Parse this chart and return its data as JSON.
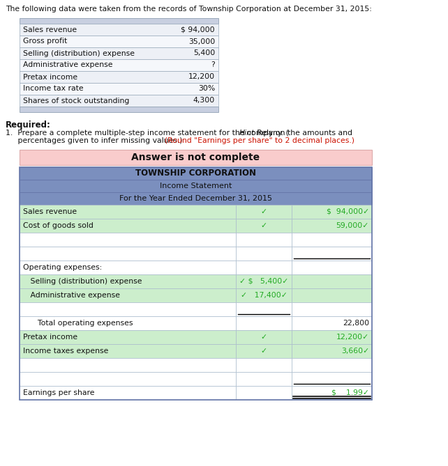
{
  "intro_text": "The following data were taken from the records of Township Corporation at December 31, 2015:",
  "given_table_rows": [
    [
      "Sales revenue",
      "$ 94,000"
    ],
    [
      "Gross profit",
      "35,000"
    ],
    [
      "Selling (distribution) expense",
      "5,400"
    ],
    [
      "Administrative expense",
      "?"
    ],
    [
      "Pretax income",
      "12,200"
    ],
    [
      "Income tax rate",
      "30%"
    ],
    [
      "Shares of stock outstanding",
      "4,300"
    ]
  ],
  "required_text": "Required:",
  "required_line1_black1": "1.  Prepare a complete multiple-step income statement for the company. (",
  "required_line1_italic": "Hint",
  "required_line1_black2": ": Rely on the amounts and",
  "required_line2_black": "     percentages given to infer missing values.) ",
  "required_line2_red": "(Round \"Earnings per share\" to 2 decimal places.)",
  "answer_banner": "Answer is not complete",
  "is_header_rows": [
    "TOWNSHIP CORPORATION",
    "Income Statement",
    "For the Year Ended December 31, 2015"
  ],
  "is_rows": [
    {
      "label": "Sales revenue",
      "col2": "✓",
      "col3": "$  94,000✓",
      "green": true,
      "line2": false,
      "line3": false,
      "dbl_ul": false
    },
    {
      "label": "Cost of goods sold",
      "col2": "✓",
      "col3": "59,000✓",
      "green": true,
      "line2": false,
      "line3": false,
      "dbl_ul": false
    },
    {
      "label": "",
      "col2": "",
      "col3": "",
      "green": false,
      "line2": false,
      "line3": false,
      "dbl_ul": false
    },
    {
      "label": "",
      "col2": "",
      "col3": "",
      "green": false,
      "line2": false,
      "line3": true,
      "dbl_ul": false
    },
    {
      "label": "Operating expenses:",
      "col2": "",
      "col3": "",
      "green": false,
      "line2": false,
      "line3": false,
      "dbl_ul": false
    },
    {
      "label": "   Selling (distribution) expense",
      "col2": "✓ $   5,400✓",
      "col3": "",
      "green": true,
      "line2": false,
      "line3": false,
      "dbl_ul": false
    },
    {
      "label": "   Administrative expense",
      "col2": "✓   17,400✓",
      "col3": "",
      "green": true,
      "line2": false,
      "line3": false,
      "dbl_ul": false
    },
    {
      "label": "",
      "col2": "",
      "col3": "",
      "green": false,
      "line2": true,
      "line3": false,
      "dbl_ul": false
    },
    {
      "label": "      Total operating expenses",
      "col2": "",
      "col3": "22,800",
      "green": false,
      "line2": false,
      "line3": false,
      "dbl_ul": false
    },
    {
      "label": "Pretax income",
      "col2": "✓",
      "col3": "12,200✓",
      "green": true,
      "line2": false,
      "line3": false,
      "dbl_ul": false
    },
    {
      "label": "Income taxes expense",
      "col2": "✓",
      "col3": "3,660✓",
      "green": true,
      "line2": false,
      "line3": false,
      "dbl_ul": false
    },
    {
      "label": "",
      "col2": "",
      "col3": "",
      "green": false,
      "line2": false,
      "line3": false,
      "dbl_ul": false
    },
    {
      "label": "",
      "col2": "",
      "col3": "",
      "green": false,
      "line2": false,
      "line3": true,
      "dbl_ul": false
    },
    {
      "label": "Earnings per share",
      "col2": "",
      "col3": "$    1.99✓",
      "green": false,
      "line2": false,
      "line3": false,
      "dbl_ul": true
    }
  ],
  "colors": {
    "bg": "#ffffff",
    "header_blue": "#7b8fbe",
    "header_border": "#6677aa",
    "table_header_bg": "#c8cfe0",
    "table_row_even": "#edf0f6",
    "table_row_odd": "#f5f7fb",
    "table_border": "#9aaabb",
    "green_row": "#cceecc",
    "white_row": "#ffffff",
    "light_green_row": "#e8f5e8",
    "banner_bg": "#f9cccc",
    "banner_border": "#ddaaaa",
    "text_dark": "#1a1a1a",
    "text_green": "#22aa22",
    "text_red": "#cc1100",
    "inner_border": "#aabbcc"
  },
  "figsize": [
    6.42,
    6.69
  ],
  "dpi": 100
}
